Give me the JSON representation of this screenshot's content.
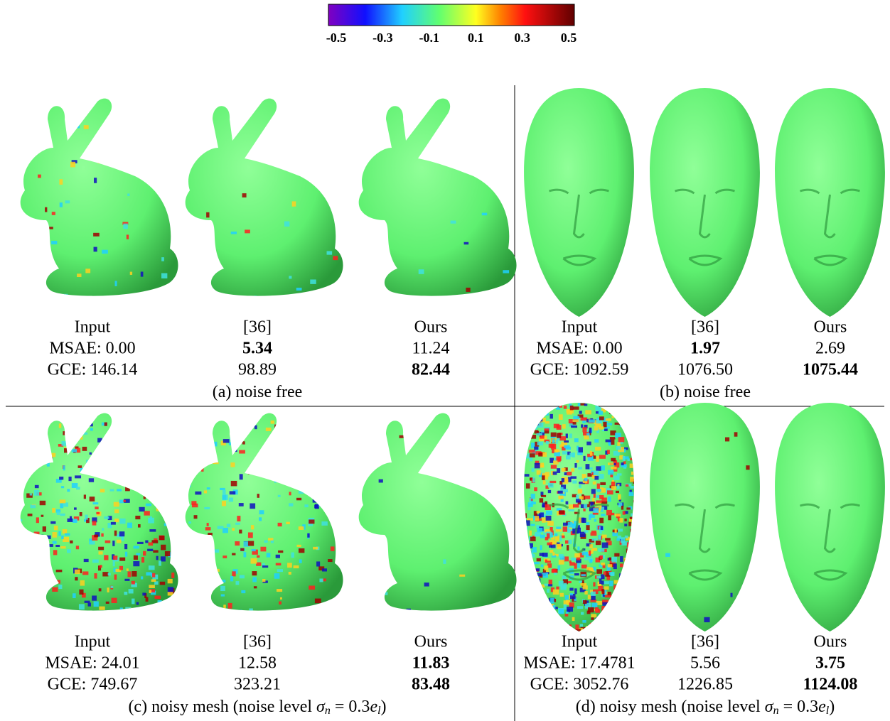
{
  "colorbar": {
    "lim": [
      -0.5,
      0.5
    ],
    "ticks": [
      -0.5,
      -0.3,
      -0.1,
      0.1,
      0.3,
      0.5
    ]
  },
  "panels": [
    {
      "shape": "bunny",
      "columns": [
        {
          "label": "Input",
          "msae": "MSAE: 0.00",
          "gce": "GCE: 146.14",
          "msae_best": false,
          "gce_best": false
        },
        {
          "label": "[36]",
          "msae": "5.34",
          "gce": "98.89",
          "msae_best": true,
          "gce_best": false
        },
        {
          "label": "Ours",
          "msae": "11.24",
          "gce": "82.44",
          "msae_best": false,
          "gce_best": true
        }
      ],
      "caption": {
        "prefix": "(a) noise free"
      }
    },
    {
      "shape": "head",
      "columns": [
        {
          "label": "Input",
          "msae": "MSAE: 0.00",
          "gce": "GCE: 1092.59",
          "msae_best": false,
          "gce_best": false
        },
        {
          "label": "[36]",
          "msae": "1.97",
          "gce": "1076.50",
          "msae_best": true,
          "gce_best": false
        },
        {
          "label": "Ours",
          "msae": "2.69",
          "gce": "1075.44",
          "msae_best": false,
          "gce_best": true
        }
      ],
      "caption": {
        "prefix": "(b) noise free"
      }
    },
    {
      "shape": "bunny",
      "columns": [
        {
          "label": "Input",
          "msae": "MSAE: 24.01",
          "gce": "GCE: 749.67",
          "msae_best": false,
          "gce_best": false
        },
        {
          "label": "[36]",
          "msae": "12.58",
          "gce": "323.21",
          "msae_best": false,
          "gce_best": false
        },
        {
          "label": "Ours",
          "msae": "11.83",
          "gce": "83.48",
          "msae_best": true,
          "gce_best": true
        }
      ],
      "caption": {
        "prefix": "(c) noisy mesh (noise level ",
        "sigma": "σ",
        "sub_n": "n",
        "eq": " = 0.3",
        "e": "e",
        "sub_l": "l",
        "suffix": ")"
      }
    },
    {
      "shape": "head",
      "columns": [
        {
          "label": "Input",
          "msae": "MSAE: 17.4781",
          "gce": "GCE: 3052.76",
          "msae_best": false,
          "gce_best": false
        },
        {
          "label": "[36]",
          "msae": "5.56",
          "gce": "1226.85",
          "msae_best": false,
          "gce_best": false
        },
        {
          "label": "Ours",
          "msae": "3.75",
          "gce": "1124.08",
          "msae_best": true,
          "gce_best": true
        }
      ],
      "caption": {
        "prefix": "(d) noisy mesh (noise level ",
        "sigma": "σ",
        "sub_n": "n",
        "eq": " = 0.3",
        "e": "e",
        "sub_l": "l",
        "suffix": ")"
      }
    }
  ]
}
